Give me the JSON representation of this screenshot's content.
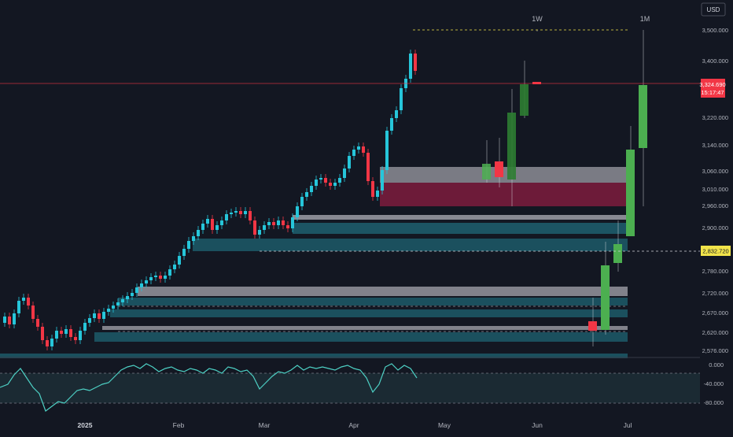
{
  "header": {
    "currency": "USD"
  },
  "price_axis": {
    "ticks": [
      "3,500.000",
      "3,400.000",
      "3,220.000",
      "3,140.000",
      "3,060.000",
      "3,010.000",
      "2,960.000",
      "2,900.000",
      "2,780.000",
      "2,720.000",
      "2,670.000",
      "2,620.000",
      "2,576.000"
    ]
  },
  "price_label": {
    "value": "3,324.690",
    "countdown": "15:17:47"
  },
  "level_label": {
    "value": "2,832.720"
  },
  "timeframes": {
    "weekly": "1W",
    "monthly": "1M"
  },
  "time_axis": {
    "ticks": [
      "2025",
      "Feb",
      "Mar",
      "Apr",
      "May",
      "Jun",
      "Jul"
    ]
  },
  "oscillator": {
    "ticks": [
      "0.000",
      "-40.000",
      "-80.000"
    ]
  },
  "colors": {
    "background": "#131722",
    "up": "#26c6da",
    "down": "#f23645",
    "htf_up": "#4caf50",
    "htf_up_dark": "#2e7d32",
    "price_line": "#f23645",
    "level": "#f2e44a",
    "zone_gray": "#9e9ea6",
    "zone_teal": "#1e5f6e",
    "zone_red": "#8c1e42",
    "oscillator_line": "#4dd0c4"
  },
  "chart_data": {
    "type": "candlestick",
    "y_scale": "price axis labels as printed (non-linear)",
    "oscillator_range": [
      -80,
      0
    ],
    "grid": false,
    "legend": "none"
  }
}
